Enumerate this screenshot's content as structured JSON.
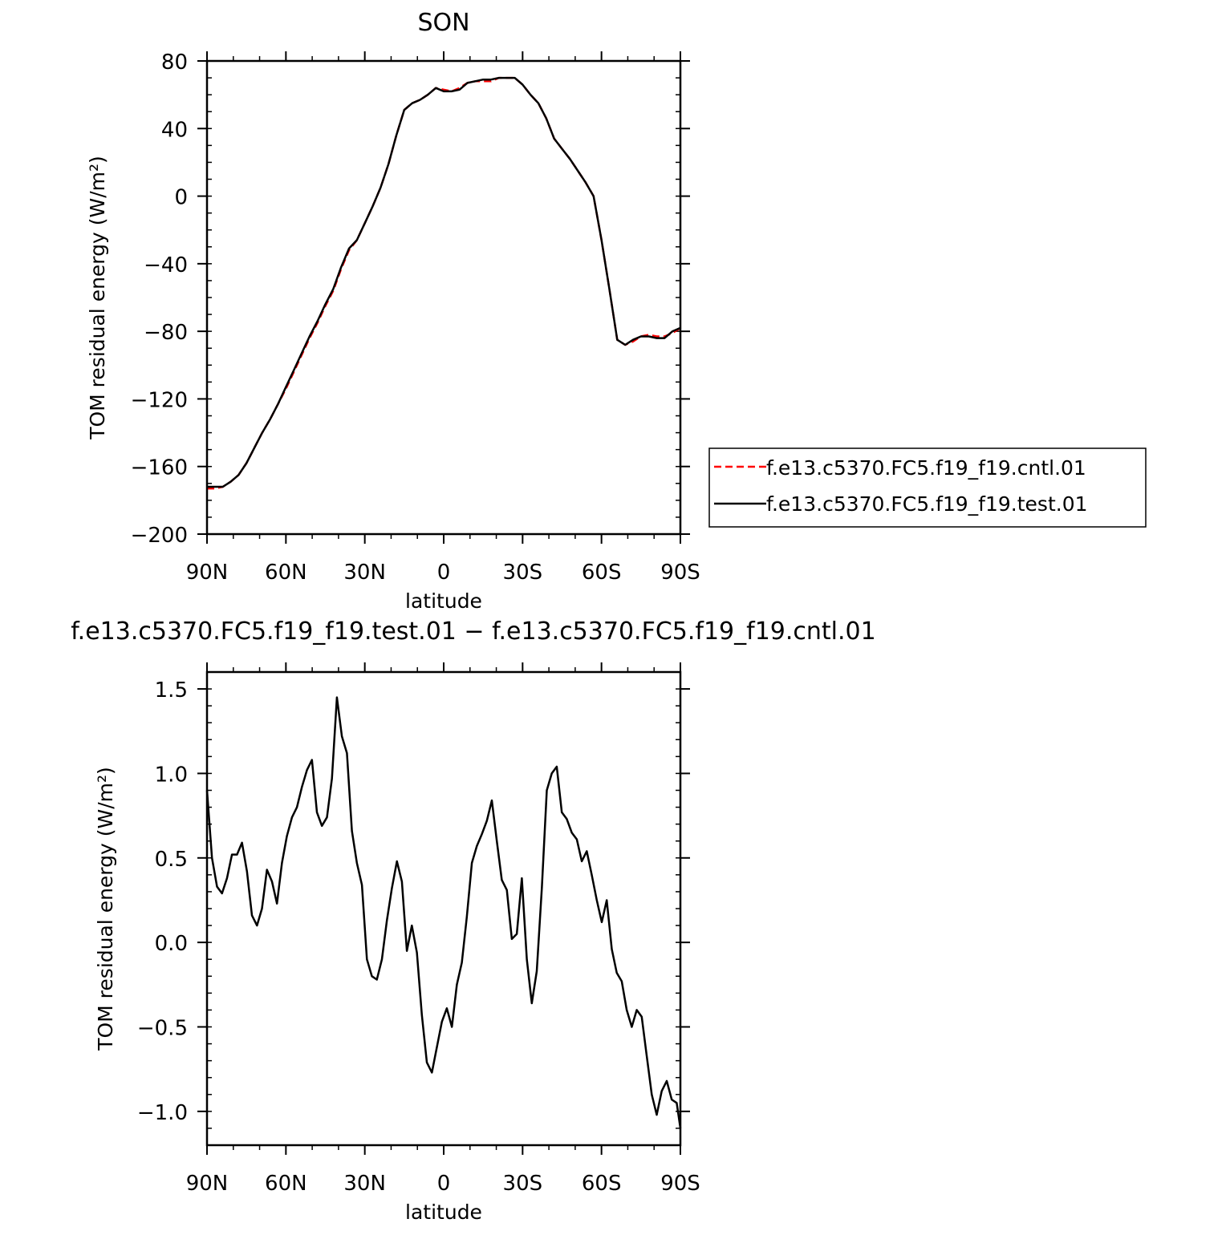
{
  "chart_data": [
    {
      "type": "line",
      "title": "SON",
      "xlabel": "latitude",
      "ylabel": "TOM residual energy (W/m²)",
      "xlim": [
        90,
        -90
      ],
      "ylim": [
        -200,
        80
      ],
      "x_ticks": [
        90,
        60,
        30,
        0,
        -30,
        -60,
        -90
      ],
      "x_tick_labels": [
        "90N",
        "60N",
        "30N",
        "0",
        "30S",
        "60S",
        "90S"
      ],
      "y_ticks": [
        80,
        40,
        0,
        -40,
        -80,
        -120,
        -160,
        -200
      ],
      "y_tick_labels": [
        "80",
        "40",
        "0",
        "−40",
        "−80",
        "−120",
        "−160",
        "−200"
      ],
      "legend_position": "right",
      "series": [
        {
          "name": "f.e13.c5370.FC5.f19_f19.cntl.01",
          "color": "#ff0000",
          "dash": "dashed",
          "x": [
            90,
            87,
            84,
            81,
            78,
            75,
            72,
            69,
            66,
            63,
            60,
            57,
            54,
            51,
            48,
            45,
            42,
            39,
            36,
            33,
            30,
            27,
            24,
            21,
            18,
            15,
            12,
            9,
            6,
            3,
            0,
            -3,
            -6,
            -9,
            -12,
            -15,
            -18,
            -21,
            -24,
            -27,
            -30,
            -33,
            -36,
            -39,
            -42,
            -45,
            -48,
            -51,
            -54,
            -57,
            -60,
            -63,
            -66,
            -69,
            -72,
            -75,
            -78,
            -81,
            -84,
            -87,
            -90
          ],
          "y": [
            -173,
            -173,
            -172,
            -169,
            -165,
            -158,
            -149,
            -140,
            -132,
            -123,
            -114,
            -104,
            -94,
            -84,
            -75,
            -65,
            -56,
            -43,
            -32,
            -26,
            -16,
            -6,
            5,
            19,
            36,
            51,
            55,
            57,
            60,
            64,
            63,
            62,
            64,
            67,
            68,
            68,
            68,
            70,
            70,
            70,
            66,
            60,
            55,
            46,
            34,
            28,
            22,
            15,
            8,
            0,
            -26,
            -55,
            -85,
            -88,
            -86,
            -83,
            -82,
            -83,
            -83,
            -81,
            -78
          ]
        },
        {
          "name": "f.e13.c5370.FC5.f19_f19.test.01",
          "color": "#000000",
          "dash": "solid",
          "x": [
            90,
            87,
            84,
            81,
            78,
            75,
            72,
            69,
            66,
            63,
            60,
            57,
            54,
            51,
            48,
            45,
            42,
            39,
            36,
            33,
            30,
            27,
            24,
            21,
            18,
            15,
            12,
            9,
            6,
            3,
            0,
            -3,
            -6,
            -9,
            -12,
            -15,
            -18,
            -21,
            -24,
            -27,
            -30,
            -33,
            -36,
            -39,
            -42,
            -45,
            -48,
            -51,
            -54,
            -57,
            -60,
            -63,
            -66,
            -69,
            -72,
            -75,
            -78,
            -81,
            -84,
            -87,
            -90
          ],
          "y": [
            -172,
            -172,
            -172,
            -169,
            -165,
            -158,
            -149,
            -140,
            -132,
            -123,
            -113,
            -103,
            -93,
            -83,
            -74,
            -64,
            -55,
            -42,
            -31,
            -26,
            -16,
            -6,
            5,
            19,
            36,
            51,
            55,
            57,
            60,
            64,
            62,
            62,
            63,
            67,
            68,
            69,
            69,
            70,
            70,
            70,
            66,
            60,
            55,
            46,
            34,
            28,
            22,
            15,
            8,
            0,
            -26,
            -55,
            -85,
            -88,
            -85,
            -83,
            -83,
            -84,
            -84,
            -80,
            -78
          ]
        }
      ]
    },
    {
      "type": "line",
      "title": "f.e13.c5370.FC5.f19_f19.test.01 − f.e13.c5370.FC5.f19_f19.cntl.01",
      "xlabel": "latitude",
      "ylabel": "TOM residual energy (W/m²)",
      "xlim": [
        90,
        -90
      ],
      "ylim": [
        -1.2,
        1.6
      ],
      "x_ticks": [
        90,
        60,
        30,
        0,
        -30,
        -60,
        -90
      ],
      "x_tick_labels": [
        "90N",
        "60N",
        "30N",
        "0",
        "30S",
        "60S",
        "90S"
      ],
      "y_ticks": [
        1.5,
        1.0,
        0.5,
        0.0,
        -0.5,
        -1.0
      ],
      "y_tick_labels": [
        "1.5",
        "1.0",
        "0.5",
        "0.0",
        "−0.5",
        "−1.0"
      ],
      "series": [
        {
          "color": "#000000",
          "dash": "solid",
          "x": [
            90,
            88.1,
            86.2,
            84.3,
            82.4,
            80.5,
            78.6,
            76.7,
            74.8,
            72.9,
            71,
            69.1,
            67.2,
            65.3,
            63.4,
            61.5,
            59.6,
            57.7,
            55.8,
            53.9,
            52,
            50.1,
            48.2,
            46.3,
            44.4,
            42.5,
            40.6,
            38.7,
            36.8,
            34.9,
            33,
            31.1,
            29.2,
            27.3,
            25.4,
            23.5,
            21.6,
            19.7,
            17.8,
            15.9,
            14,
            12.1,
            10.2,
            8.3,
            6.4,
            4.5,
            2.6,
            0.7,
            -1.2,
            -3.1,
            -5,
            -6.9,
            -8.8,
            -10.7,
            -12.6,
            -14.5,
            -16.4,
            -18.3,
            -20.2,
            -22.1,
            -24,
            -25.9,
            -27.8,
            -29.7,
            -31.6,
            -33.5,
            -35.4,
            -37.3,
            -39.2,
            -41.1,
            -43,
            -44.9,
            -46.8,
            -48.7,
            -50.6,
            -52.5,
            -54.4,
            -56.3,
            -58.2,
            -60.1,
            -62,
            -63.9,
            -65.8,
            -67.7,
            -69.6,
            -71.5,
            -73.4,
            -75.3,
            -77.2,
            -79.1,
            -81,
            -82.9,
            -84.8,
            -86.7,
            -88.6,
            -90
          ],
          "y": [
            0.9,
            0.5,
            0.33,
            0.29,
            0.38,
            0.52,
            0.52,
            0.59,
            0.42,
            0.16,
            0.1,
            0.2,
            0.43,
            0.36,
            0.23,
            0.47,
            0.63,
            0.74,
            0.8,
            0.92,
            1.02,
            1.08,
            0.77,
            0.69,
            0.74,
            0.97,
            1.45,
            1.22,
            1.12,
            0.66,
            0.47,
            0.34,
            -0.1,
            -0.2,
            -0.22,
            -0.1,
            0.13,
            0.32,
            0.48,
            0.36,
            -0.05,
            0.1,
            -0.06,
            -0.43,
            -0.71,
            -0.77,
            -0.62,
            -0.47,
            -0.39,
            -0.5,
            -0.25,
            -0.12,
            0.15,
            0.47,
            0.57,
            0.64,
            0.72,
            0.84,
            0.6,
            0.37,
            0.31,
            0.02,
            0.05,
            0.38,
            -0.1,
            -0.36,
            -0.17,
            0.32,
            0.9,
            1.0,
            1.04,
            0.77,
            0.73,
            0.65,
            0.61,
            0.48,
            0.54,
            0.4,
            0.25,
            0.12,
            0.25,
            -0.04,
            -0.18,
            -0.23,
            -0.4,
            -0.5,
            -0.4,
            -0.44,
            -0.67,
            -0.9,
            -1.02,
            -0.88,
            -0.82,
            -0.93,
            -0.95,
            -1.1
          ]
        }
      ]
    }
  ]
}
